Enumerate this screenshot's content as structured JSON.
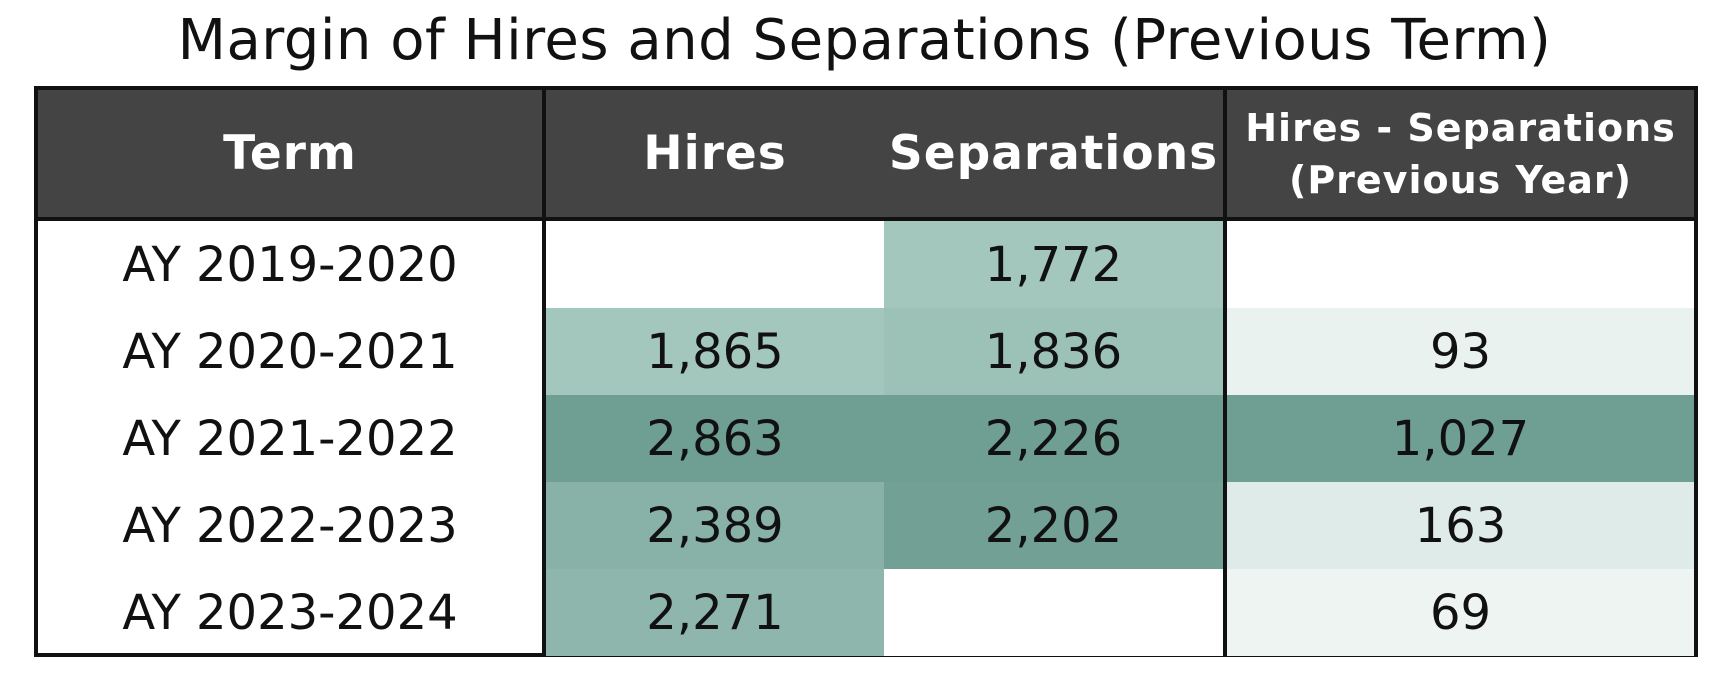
{
  "chart_data": {
    "type": "table",
    "title": "Margin of Hires and Separations (Previous Term)",
    "columns": [
      "Term",
      "Hires",
      "Separations",
      "Hires - Separations",
      "(Previous Year)"
    ],
    "rows": [
      {
        "term": "AY 2019-2020",
        "hires": "",
        "separations": "1,772",
        "diff": ""
      },
      {
        "term": "AY 2020-2021",
        "hires": "1,865",
        "separations": "1,836",
        "diff": "93"
      },
      {
        "term": "AY 2021-2022",
        "hires": "2,863",
        "separations": "2,226",
        "diff": "1,027"
      },
      {
        "term": "AY 2022-2023",
        "hires": "2,389",
        "separations": "2,202",
        "diff": "163"
      },
      {
        "term": "AY 2023-2024",
        "hires": "2,271",
        "separations": "",
        "diff": "69"
      }
    ],
    "values": {
      "hires": [
        null,
        1865,
        2863,
        2389,
        2271
      ],
      "separations": [
        1772,
        1836,
        2226,
        2202,
        null
      ],
      "diff": [
        null,
        93,
        1027,
        163,
        69
      ]
    },
    "colors": {
      "header_bg": "#444444",
      "header_text": "#ffffff",
      "scale_low": "#eef4f2",
      "scale_mid": "#a3c7bd",
      "scale_high": "#6f9e93",
      "empty": "#ffffff"
    }
  }
}
